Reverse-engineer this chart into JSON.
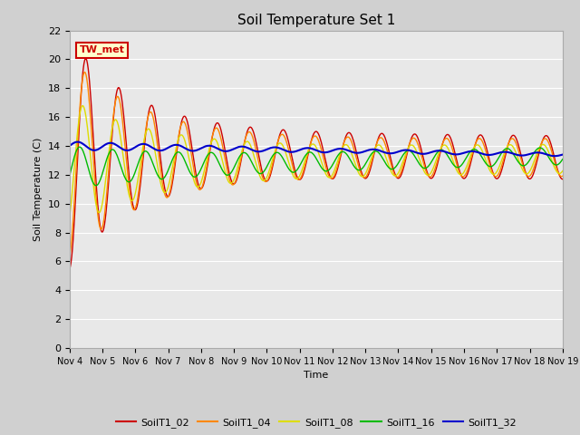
{
  "title": "Soil Temperature Set 1",
  "xlabel": "Time",
  "ylabel": "Soil Temperature (C)",
  "ylim": [
    0,
    22
  ],
  "yticks": [
    0,
    2,
    4,
    6,
    8,
    10,
    12,
    14,
    16,
    18,
    20,
    22
  ],
  "xtick_labels": [
    "Nov 4",
    "Nov 5",
    "Nov 6",
    "Nov 7",
    "Nov 8",
    "Nov 9",
    "Nov 10",
    "Nov 11",
    "Nov 12",
    "Nov 13",
    "Nov 14",
    "Nov 15",
    "Nov 16",
    "Nov 17",
    "Nov 18",
    "Nov 19"
  ],
  "colors": {
    "SoilT1_02": "#cc0000",
    "SoilT1_04": "#ff8800",
    "SoilT1_08": "#dddd00",
    "SoilT1_16": "#00bb00",
    "SoilT1_32": "#0000cc"
  },
  "bg_color": "#e8e8e8",
  "annotation_text": "TW_met",
  "legend_entries": [
    "SoilT1_02",
    "SoilT1_04",
    "SoilT1_08",
    "SoilT1_16",
    "SoilT1_32"
  ]
}
